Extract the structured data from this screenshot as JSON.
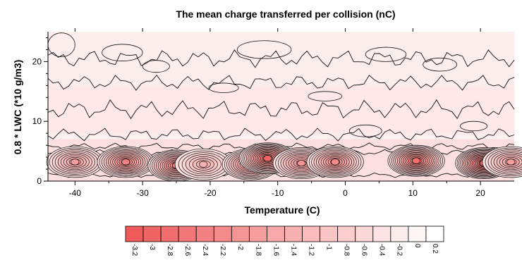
{
  "chart_data": {
    "type": "heatmap",
    "title": "The mean charge transferred per collision (nC)",
    "xlabel": "Temperature (C)",
    "ylabel": "0.8 * LWC (*10 g/m3)",
    "xlim": [
      -44,
      25
    ],
    "ylim": [
      0,
      25
    ],
    "x_ticks": [
      -40,
      -30,
      -20,
      -10,
      0,
      10,
      20
    ],
    "x_tick_labels": [
      "-40",
      "-30",
      "-20",
      "-10",
      "0",
      "10",
      "20"
    ],
    "y_ticks": [
      0,
      10,
      20
    ],
    "y_tick_labels": [
      "0",
      "10",
      "20"
    ],
    "colorbar": {
      "levels": [
        -3.2,
        -3,
        -2.8,
        -2.6,
        -2.4,
        -2.2,
        -2,
        -1.8,
        -1.6,
        -1.4,
        -1.2,
        -1,
        -0.8,
        -0.6,
        -0.4,
        -0.2,
        0,
        0.2
      ],
      "labels": [
        "-3.2",
        "-3",
        "-2.8",
        "-2.6",
        "-2.4",
        "-2.2",
        "-2",
        "-1.8",
        "-1.6",
        "-1.4",
        "-1.2",
        "-1",
        "-0.8",
        "-0.6",
        "-0.4",
        "-0.2",
        "0",
        "0.2"
      ],
      "color_low": "#f05a5a",
      "color_high": "#ffffff"
    },
    "blobs": [
      {
        "x": -40,
        "y": 3.2,
        "min": -1.8
      },
      {
        "x": -32.5,
        "y": 3.2,
        "min": -2.4
      },
      {
        "x": -25,
        "y": 2.6,
        "min": -2.6
      },
      {
        "x": -21,
        "y": 2.8,
        "min": -1.4
      },
      {
        "x": -14,
        "y": 2.8,
        "min": -2.4
      },
      {
        "x": -11.5,
        "y": 3.8,
        "min": -3.0
      },
      {
        "x": -6.5,
        "y": 3.0,
        "min": -2.0
      },
      {
        "x": -1.5,
        "y": 3.2,
        "min": -2.2
      },
      {
        "x": 10.5,
        "y": 3.4,
        "min": -2.8
      },
      {
        "x": 20.5,
        "y": 3.0,
        "min": -3.2
      },
      {
        "x": 24.5,
        "y": 3.2,
        "min": -1.8
      }
    ],
    "grid": false
  }
}
